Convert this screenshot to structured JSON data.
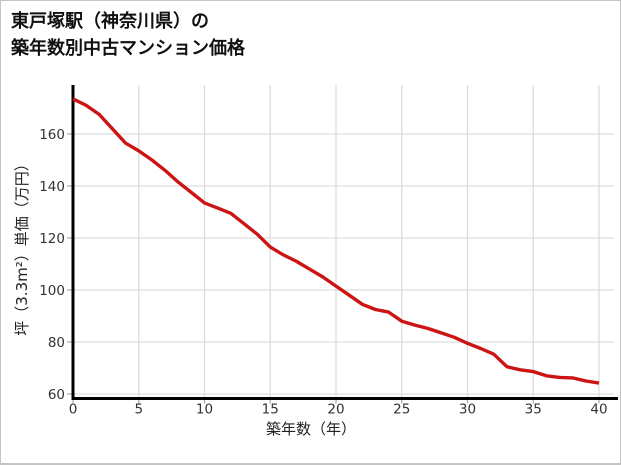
{
  "page": {
    "background": "#ffffff",
    "border_color": "#c4c4c4"
  },
  "chart": {
    "title_line1": "東戸塚駅（神奈川県）の",
    "title_line2": "築年数別中古マンション価格"
  },
  "chart_data": {
    "type": "line",
    "title": "東戸塚駅（神奈川県）の築年数別中古マンション価格",
    "xlabel": "築年数（年）",
    "ylabel": "坪（3.3m²）単価（万円）",
    "x": [
      0,
      1,
      2,
      3,
      4,
      5,
      6,
      7,
      8,
      9,
      10,
      11,
      12,
      13,
      14,
      15,
      16,
      17,
      18,
      19,
      20,
      21,
      22,
      23,
      24,
      25,
      26,
      27,
      28,
      29,
      30,
      31,
      32,
      33,
      34,
      35,
      36,
      37,
      38,
      39,
      40
    ],
    "values": [
      173.5,
      171.0,
      167.5,
      162.0,
      156.5,
      153.5,
      150.0,
      146.0,
      141.5,
      137.5,
      133.5,
      131.5,
      129.5,
      125.5,
      121.5,
      116.5,
      113.5,
      111.0,
      108.0,
      105.0,
      101.5,
      98.0,
      94.5,
      92.5,
      91.5,
      88.0,
      86.5,
      85.2,
      83.5,
      81.8,
      79.5,
      77.5,
      75.3,
      70.5,
      69.3,
      68.6,
      67.0,
      66.4,
      66.2,
      65.0,
      64.2
    ],
    "xlim": [
      0,
      40
    ],
    "ylim": [
      58,
      179
    ],
    "xticks": [
      0,
      5,
      10,
      15,
      20,
      25,
      30,
      35,
      40
    ],
    "yticks": [
      60,
      80,
      100,
      120,
      140,
      160
    ],
    "grid": true,
    "legend_position": "none",
    "line_color": "#cc1414",
    "axis_color": "#000000",
    "grid_color": "#dddddd",
    "tick_color": "#aaaaaa"
  }
}
